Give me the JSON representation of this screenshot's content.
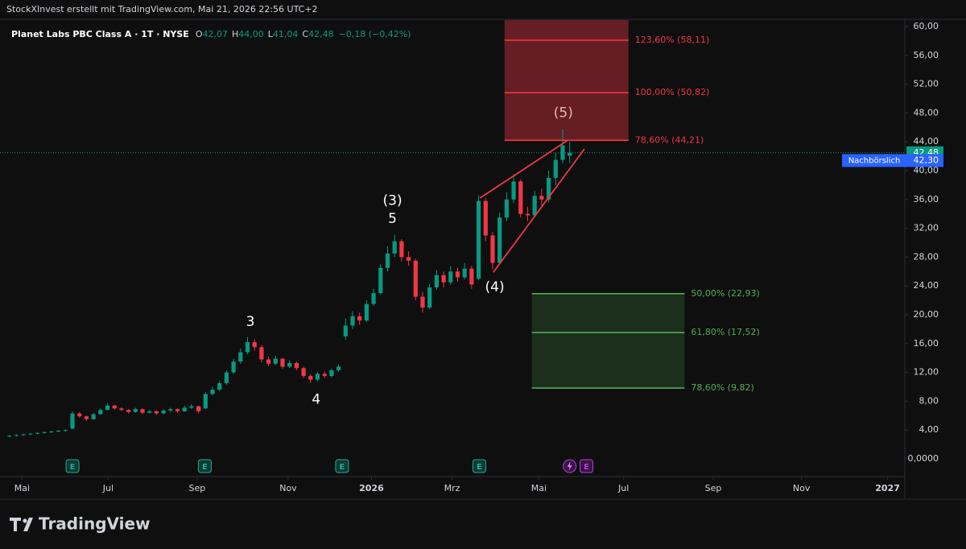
{
  "chart_data": {
    "type": "candlestick",
    "caption": "StockXInvest erstellt mit TradingView.com, Mai 21, 2026 22:56 UTC+2",
    "legend": {
      "symbol": "Planet Labs PBC Class A · 1T · NYSE",
      "keys": [
        "O",
        "H",
        "L",
        "C"
      ],
      "values": [
        "42,07",
        "44,00",
        "41,04",
        "42,48"
      ],
      "change": "−0,18 (−0,42%)"
    },
    "brand": "TradingView",
    "up_color": "#089981",
    "down_color": "#f23645",
    "open": [
      3.1,
      3.2,
      3.3,
      3.4,
      3.5,
      3.6,
      3.7,
      3.8,
      3.9,
      4.2,
      6.3,
      5.9,
      5.5,
      6.2,
      6.8,
      7.4,
      7.0,
      6.8,
      6.5,
      6.9,
      6.4,
      6.6,
      6.3,
      6.7,
      6.9,
      6.6,
      7.1,
      7.3,
      7.0,
      9.0,
      9.6,
      10.5,
      12.0,
      13.5,
      14.8,
      16.2,
      15.5,
      13.8,
      13.2,
      13.9,
      12.8,
      13.3,
      12.6,
      11.5,
      11.0,
      11.8,
      11.5,
      12.3,
      17.0,
      18.5,
      19.8,
      19.2,
      21.5,
      23.0,
      26.5,
      28.5,
      30.2,
      28.0,
      27.5,
      22.5,
      21.0,
      23.8,
      25.5,
      24.5,
      26.0,
      25.2,
      26.4,
      25.0,
      35.8,
      31.0,
      27.2,
      33.5,
      36.0,
      38.5,
      34.0,
      33.8,
      36.5,
      36.0,
      39.0,
      41.5,
      42.07
    ],
    "high": [
      3.3,
      3.4,
      3.5,
      3.6,
      3.7,
      3.8,
      3.9,
      4.0,
      4.1,
      6.6,
      6.5,
      6.0,
      6.4,
      7.0,
      7.7,
      7.5,
      7.2,
      6.9,
      7.1,
      7.0,
      6.8,
      6.7,
      6.9,
      7.1,
      7.0,
      7.4,
      7.6,
      7.4,
      9.3,
      10.0,
      10.8,
      12.3,
      13.9,
      15.3,
      16.9,
      16.6,
      15.8,
      14.2,
      14.3,
      14.0,
      13.7,
      13.5,
      12.8,
      11.8,
      12.0,
      12.1,
      12.5,
      13.1,
      19.5,
      20.5,
      20.3,
      22.0,
      23.6,
      27.0,
      29.5,
      31.1,
      30.5,
      28.8,
      27.8,
      23.2,
      24.3,
      26.2,
      26.0,
      26.8,
      26.5,
      27.2,
      26.8,
      36.6,
      36.2,
      31.5,
      34.2,
      37.0,
      39.5,
      38.8,
      35.0,
      37.2,
      37.5,
      40.0,
      42.5,
      45.8,
      44.0
    ],
    "low": [
      3.0,
      3.1,
      3.2,
      3.3,
      3.4,
      3.5,
      3.6,
      3.7,
      3.8,
      4.1,
      5.7,
      5.3,
      5.4,
      6.1,
      6.7,
      6.8,
      6.6,
      6.3,
      6.4,
      6.2,
      6.3,
      6.1,
      6.2,
      6.5,
      6.4,
      6.5,
      6.9,
      6.3,
      6.9,
      8.8,
      9.4,
      10.3,
      11.8,
      13.2,
      14.5,
      15.0,
      13.4,
      12.9,
      13.0,
      12.5,
      12.6,
      12.3,
      11.2,
      10.6,
      10.8,
      11.2,
      11.3,
      12.1,
      16.5,
      18.0,
      18.6,
      19.0,
      21.2,
      22.8,
      26.0,
      28.0,
      27.4,
      26.8,
      22.0,
      20.3,
      20.8,
      23.5,
      23.8,
      24.2,
      24.6,
      24.9,
      23.6,
      24.8,
      30.2,
      26.3,
      27.0,
      33.0,
      35.5,
      33.5,
      33.0,
      33.5,
      35.2,
      35.6,
      38.0,
      41.0,
      41.04
    ],
    "close": [
      3.2,
      3.3,
      3.4,
      3.5,
      3.6,
      3.7,
      3.8,
      3.9,
      4.0,
      6.3,
      5.9,
      5.5,
      6.2,
      6.8,
      7.4,
      7.0,
      6.8,
      6.5,
      6.9,
      6.4,
      6.6,
      6.3,
      6.7,
      6.9,
      6.6,
      7.1,
      7.3,
      6.6,
      9.0,
      9.6,
      10.5,
      12.0,
      13.5,
      14.8,
      16.2,
      15.5,
      13.8,
      13.2,
      13.9,
      12.8,
      13.3,
      12.6,
      11.5,
      11.0,
      11.8,
      11.5,
      12.3,
      12.8,
      18.5,
      19.8,
      19.2,
      21.5,
      23.0,
      26.5,
      28.5,
      30.2,
      28.0,
      27.5,
      22.5,
      21.0,
      23.8,
      25.5,
      24.5,
      26.0,
      25.2,
      26.4,
      24.2,
      35.8,
      31.0,
      27.2,
      33.5,
      36.0,
      38.5,
      34.0,
      33.8,
      36.5,
      36.0,
      39.0,
      41.5,
      43.5,
      42.48
    ],
    "xlim": [
      -0.2,
      127.4
    ],
    "xticks": [
      {
        "value": 1.8,
        "label": "Mai"
      },
      {
        "value": 14.1,
        "label": "Jul"
      },
      {
        "value": 26.8,
        "label": "Sep"
      },
      {
        "value": 39.8,
        "label": "Nov"
      },
      {
        "value": 51.7,
        "label": "2026"
      },
      {
        "value": 63.2,
        "label": "Mrz"
      },
      {
        "value": 75.6,
        "label": "Mai"
      },
      {
        "value": 87.7,
        "label": "Jul"
      },
      {
        "value": 100.5,
        "label": "Sep"
      },
      {
        "value": 113.1,
        "label": "Nov"
      },
      {
        "value": 125.4,
        "label": "2027"
      }
    ],
    "ylim": [
      0,
      60
    ],
    "yticks": [
      {
        "value": 0,
        "label": "0,0000"
      },
      {
        "value": 4,
        "label": "4,00"
      },
      {
        "value": 8,
        "label": "8,00"
      },
      {
        "value": 12,
        "label": "12,00"
      },
      {
        "value": 16,
        "label": "16,00"
      },
      {
        "value": 20,
        "label": "20,00"
      },
      {
        "value": 24,
        "label": "24,00"
      },
      {
        "value": 28,
        "label": "28,00"
      },
      {
        "value": 32,
        "label": "32,00"
      },
      {
        "value": 36,
        "label": "36,00"
      },
      {
        "value": 40,
        "label": "40,00"
      },
      {
        "value": 44,
        "label": "44,00"
      },
      {
        "value": 48,
        "label": "48,00"
      },
      {
        "value": 52,
        "label": "52,00"
      },
      {
        "value": 56,
        "label": "56,00"
      },
      {
        "value": 60,
        "label": "60,00"
      }
    ],
    "last_price": {
      "value": 42.48,
      "label": "42,48"
    },
    "post_market": {
      "name": "Nachbörslich",
      "value": 42.3,
      "label": "42,30"
    },
    "zones": [
      {
        "color": "#f23645",
        "x_range": [
          70.7,
          88.4
        ],
        "top": 61.2,
        "bottom": 44.21,
        "levels": [
          {
            "value": 58.11,
            "label": "123,60% (58,11)"
          },
          {
            "value": 50.82,
            "label": "100,00% (50,82)"
          },
          {
            "value": 44.21,
            "label": "78,60% (44,21)"
          }
        ]
      },
      {
        "color": "#4caf50",
        "x_range": [
          74.6,
          96.4
        ],
        "top": 22.93,
        "bottom": 9.82,
        "levels": [
          {
            "value": 22.93,
            "label": "50,00% (22,93)"
          },
          {
            "value": 17.52,
            "label": "61,80% (17,52)"
          },
          {
            "value": 9.82,
            "label": "78,60% (9,82)"
          }
        ]
      }
    ],
    "trendlines": [
      {
        "color": "#f23645",
        "x": [
          67.2,
          79.7
        ],
        "y": [
          36.2,
          44.2
        ]
      },
      {
        "color": "#f23645",
        "x": [
          69.1,
          82.1
        ],
        "y": [
          25.9,
          43.0
        ]
      }
    ],
    "annotations": [
      {
        "text": "3",
        "x": 34.4,
        "y": 19.0
      },
      {
        "text": "4",
        "x": 43.8,
        "y": 8.2
      },
      {
        "text": "(3)",
        "x": 54.7,
        "y": 35.8
      },
      {
        "text": "5",
        "x": 54.7,
        "y": 33.3
      },
      {
        "text": "(4)",
        "x": 69.3,
        "y": 23.8
      },
      {
        "text": "(5)",
        "x": 79.1,
        "y": 48.0
      }
    ],
    "events": [
      {
        "x": 9.0,
        "label": "E"
      },
      {
        "x": 27.9,
        "label": "E"
      },
      {
        "x": 47.5,
        "label": "E"
      },
      {
        "x": 67.1,
        "label": "E"
      },
      {
        "x": 82.4,
        "label": "E"
      }
    ]
  }
}
